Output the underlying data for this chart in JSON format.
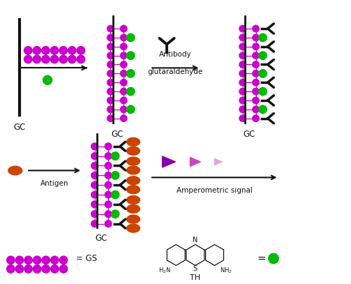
{
  "bg_color": "#ffffff",
  "magenta": "#cc00cc",
  "green": "#00bb00",
  "orange": "#cc4400",
  "black": "#111111",
  "figsize": [
    5.03,
    4.07
  ],
  "dpi": 100,
  "xlim": [
    0,
    10.06
  ],
  "ylim": [
    0,
    8.14
  ]
}
